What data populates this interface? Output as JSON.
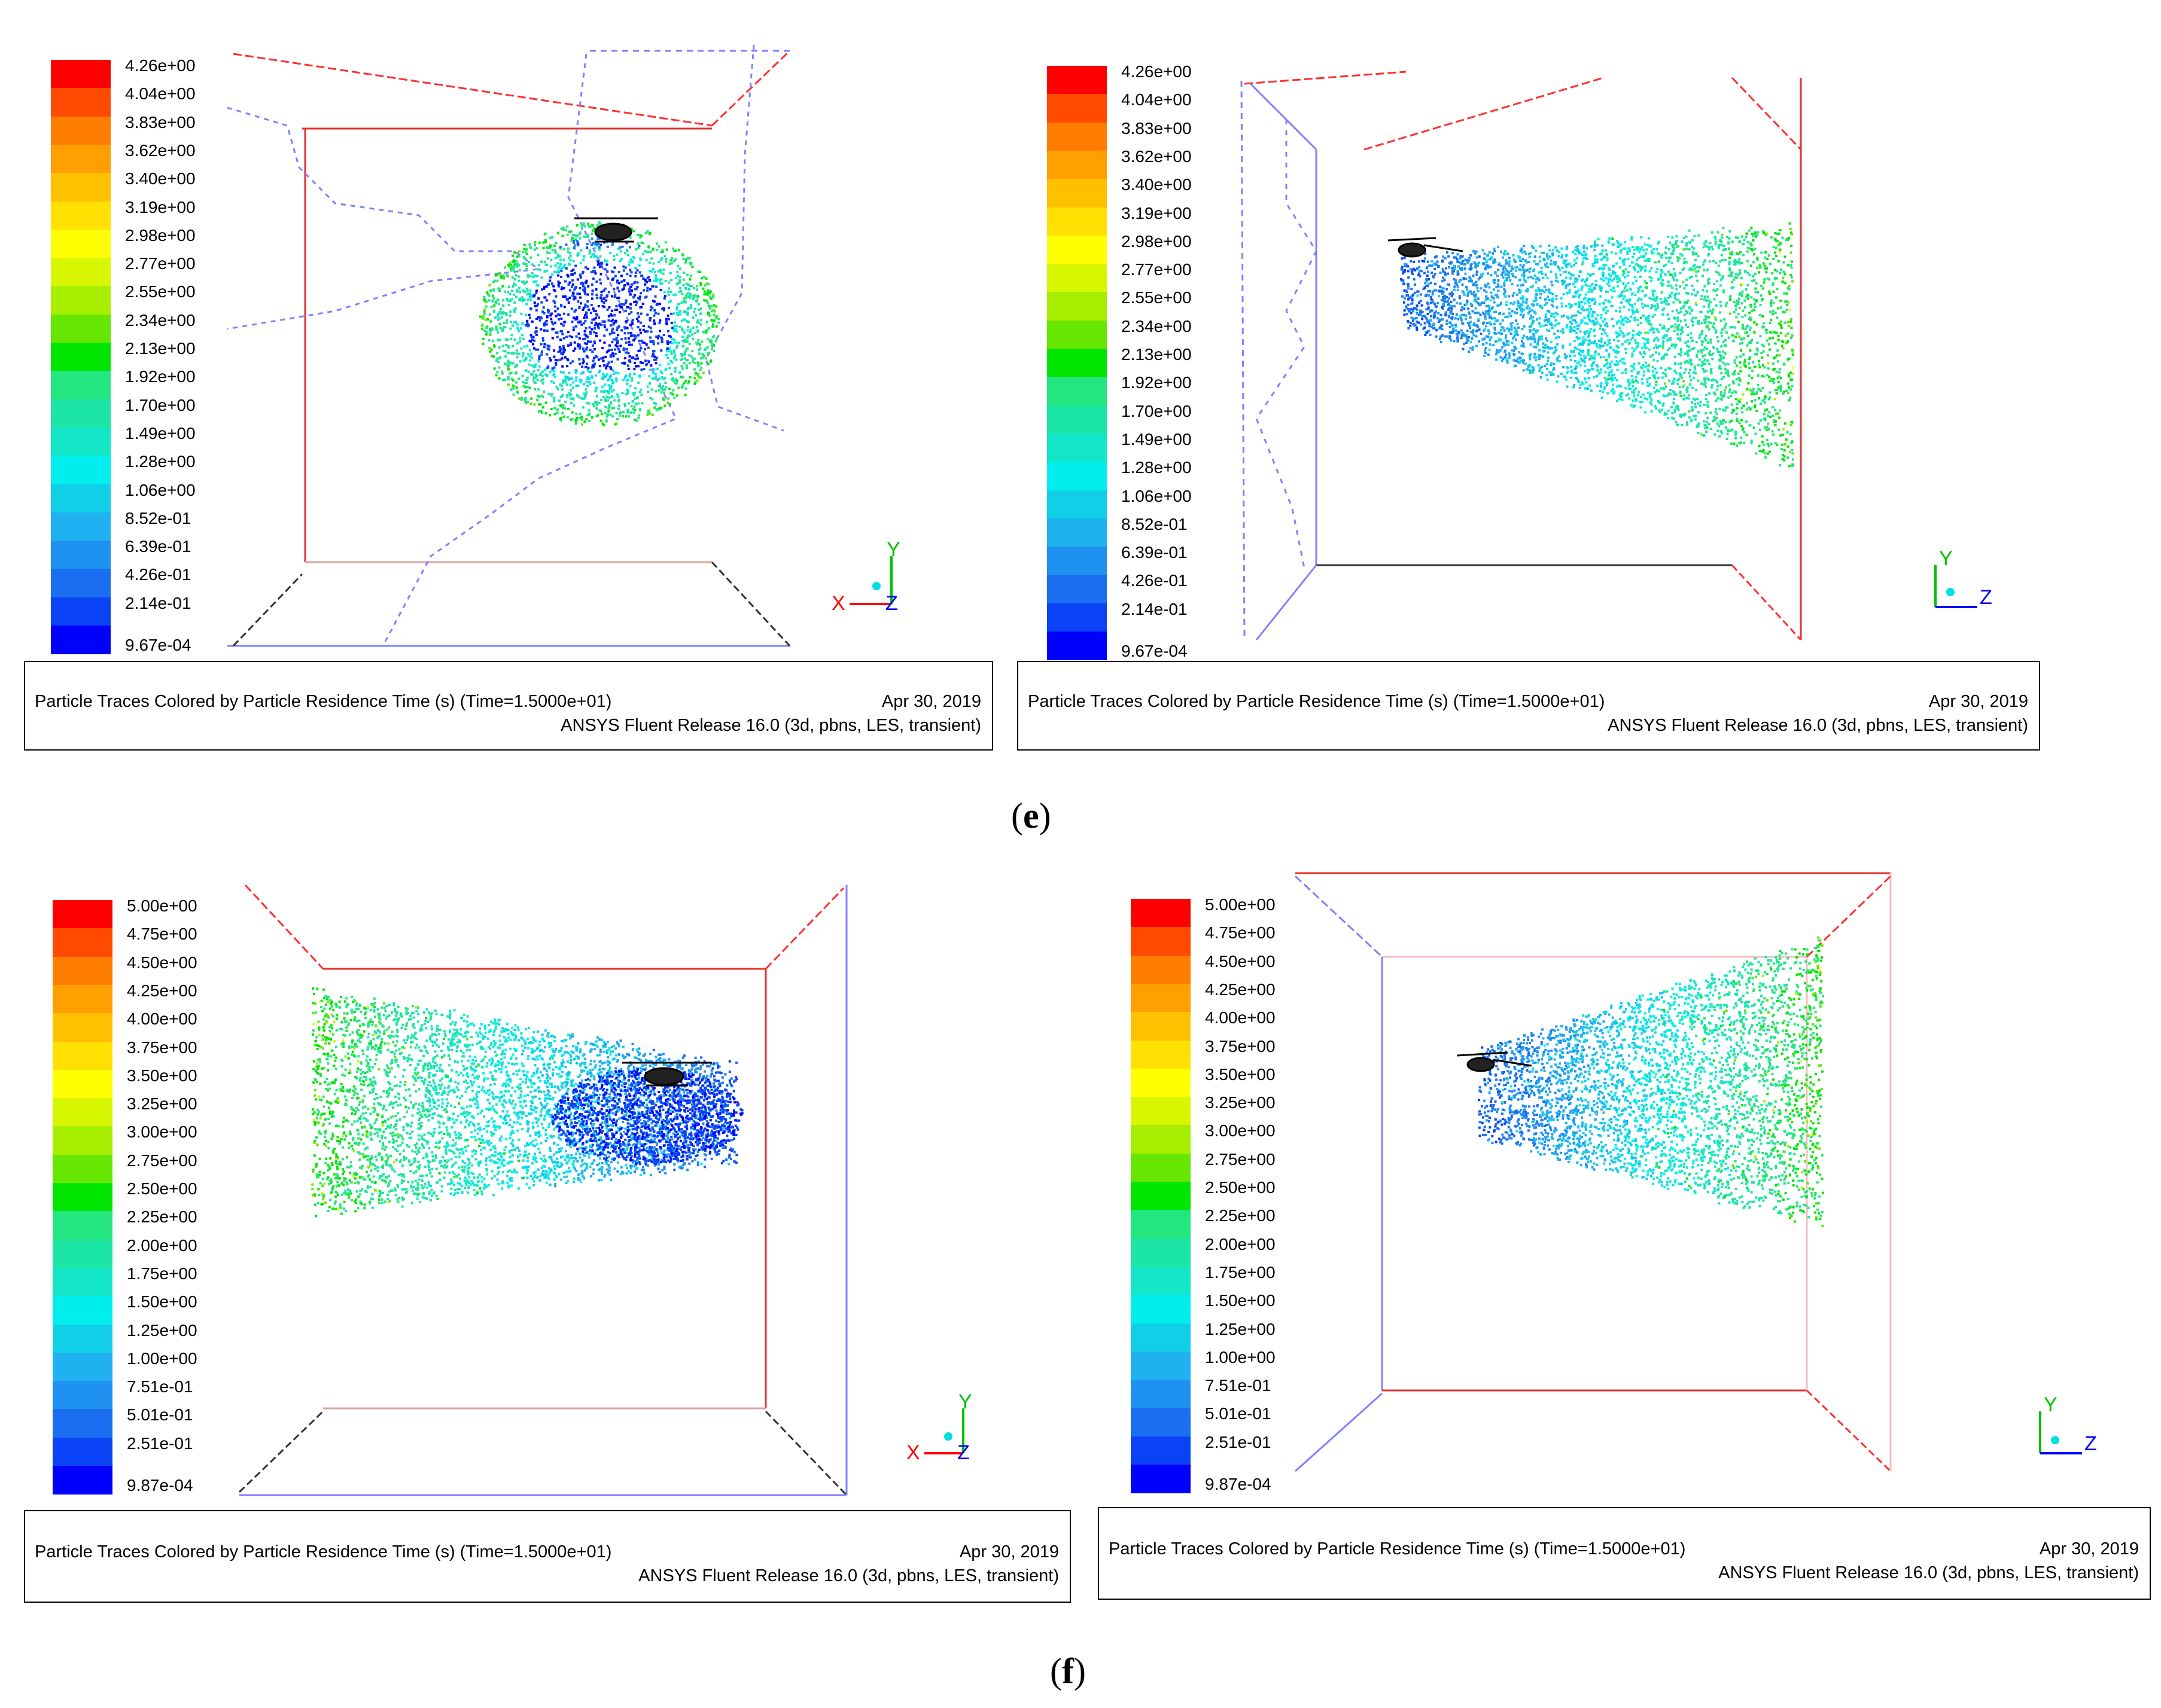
{
  "figure_labels": {
    "e": "e",
    "f": "f"
  },
  "palette": [
    "#0000ff",
    "#0a42f5",
    "#1a6ef0",
    "#1f91f0",
    "#1fb1f0",
    "#12cfe8",
    "#00eeee",
    "#14e6c8",
    "#1be6a6",
    "#24e680",
    "#00e600",
    "#66e600",
    "#a8ee00",
    "#d7f700",
    "#ffff00",
    "#ffe000",
    "#ffc000",
    "#ff9f00",
    "#ff7e00",
    "#ff4a00",
    "#ff0000"
  ],
  "caption": {
    "title": "Particle Traces Colored by Particle Residence Time (s)  (Time=1.5000e+01)",
    "date": "Apr 30, 2019",
    "release": "ANSYS Fluent Release 16.0 (3d, pbns, LES, transient)"
  },
  "axes": {
    "front": {
      "horizontal": "X",
      "vertical": "Y",
      "depth": "Z"
    },
    "side": {
      "horizontal": "Z",
      "vertical": "Y"
    }
  },
  "chart_data": [
    {
      "type": "scatter",
      "title": "Particle Traces Colored by Particle Residence Time (s)",
      "panel": "e-left",
      "view": "front (X-Y)",
      "colorbar": {
        "unit": "s",
        "range": [
          0.000967,
          4.26
        ],
        "labels": [
          "4.26e+00",
          "4.04e+00",
          "3.83e+00",
          "3.62e+00",
          "3.40e+00",
          "3.19e+00",
          "2.98e+00",
          "2.77e+00",
          "2.55e+00",
          "2.34e+00",
          "2.13e+00",
          "1.92e+00",
          "1.70e+00",
          "1.49e+00",
          "1.28e+00",
          "1.06e+00",
          "8.52e-01",
          "6.39e-01",
          "4.26e-01",
          "2.14e-01",
          "9.67e-04"
        ]
      }
    },
    {
      "type": "scatter",
      "title": "Particle Traces Colored by Particle Residence Time (s)",
      "panel": "e-right",
      "view": "side (Z-Y)",
      "colorbar": {
        "unit": "s",
        "range": [
          0.000967,
          4.26
        ],
        "labels": [
          "4.26e+00",
          "4.04e+00",
          "3.83e+00",
          "3.62e+00",
          "3.40e+00",
          "3.19e+00",
          "2.98e+00",
          "2.77e+00",
          "2.55e+00",
          "2.34e+00",
          "2.13e+00",
          "1.92e+00",
          "1.70e+00",
          "1.49e+00",
          "1.28e+00",
          "1.06e+00",
          "8.52e-01",
          "6.39e-01",
          "4.26e-01",
          "2.14e-01",
          "9.67e-04"
        ]
      }
    },
    {
      "type": "scatter",
      "title": "Particle Traces Colored by Particle Residence Time (s)",
      "panel": "f-left",
      "view": "front (X-Y)",
      "colorbar": {
        "unit": "s",
        "range": [
          0.000987,
          5.0
        ],
        "labels": [
          "5.00e+00",
          "4.75e+00",
          "4.50e+00",
          "4.25e+00",
          "4.00e+00",
          "3.75e+00",
          "3.50e+00",
          "3.25e+00",
          "3.00e+00",
          "2.75e+00",
          "2.50e+00",
          "2.25e+00",
          "2.00e+00",
          "1.75e+00",
          "1.50e+00",
          "1.25e+00",
          "1.00e+00",
          "7.51e-01",
          "5.01e-01",
          "2.51e-01",
          "9.87e-04"
        ]
      }
    },
    {
      "type": "scatter",
      "title": "Particle Traces Colored by Particle Residence Time (s)",
      "panel": "f-right",
      "view": "side (Z-Y)",
      "colorbar": {
        "unit": "s",
        "range": [
          0.000987,
          5.0
        ],
        "labels": [
          "5.00e+00",
          "4.75e+00",
          "4.50e+00",
          "4.25e+00",
          "4.00e+00",
          "3.75e+00",
          "3.50e+00",
          "3.25e+00",
          "3.00e+00",
          "2.75e+00",
          "2.50e+00",
          "2.25e+00",
          "2.00e+00",
          "1.75e+00",
          "1.50e+00",
          "1.25e+00",
          "1.00e+00",
          "7.51e-01",
          "5.01e-01",
          "2.51e-01",
          "9.87e-04"
        ]
      }
    }
  ]
}
